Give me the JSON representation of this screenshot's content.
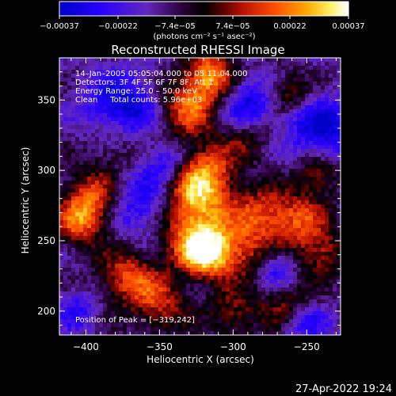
{
  "chart_data": {
    "type": "heatmap",
    "title": "Reconstructed RHESSI Image",
    "xlabel": "Heliocentric X (arcsec)",
    "ylabel": "Heliocentric Y (arcsec)",
    "xlim": [
      -418,
      -227
    ],
    "ylim": [
      183,
      380
    ],
    "xticks": [
      -400,
      -350,
      -300,
      -250
    ],
    "yticks": [
      200,
      250,
      300,
      350
    ],
    "xtick_labels": [
      "−400",
      "−350",
      "−300",
      "−250"
    ],
    "ytick_labels": [
      "200",
      "250",
      "300",
      "350"
    ],
    "colorbar": {
      "ticks": [
        -0.00037,
        -0.00022,
        -7.4e-05,
        7.4e-05,
        0.00022,
        0.00037
      ],
      "tick_labels": [
        "−0.00037",
        "−0.00022",
        "−7.4e−05",
        "7.4e−05",
        "0.00022",
        "0.00037"
      ],
      "units_label": "(photons cm⁻² s⁻¹ asec⁻²)",
      "range": [
        -0.00037,
        0.00037
      ]
    },
    "annotations": [
      "14–Jan–2005 05:05:04.000 to 05:11:04.000",
      "Detectors: 3F 4F 5F 6F 7F 8F, Att 1",
      "Energy Range: 25.0 – 50.0 keV",
      "Clean     Total counts: 5.96e+03"
    ],
    "peak_label": "Position of Peak = [−319,242]",
    "peak": [
      -319,
      242
    ],
    "blobs": [
      {
        "x": -319,
        "y": 242,
        "v": 0.00037,
        "r": 12
      },
      {
        "x": -330,
        "y": 262,
        "v": 0.00022,
        "r": 18
      },
      {
        "x": -325,
        "y": 285,
        "v": 0.00018,
        "r": 16
      },
      {
        "x": -318,
        "y": 300,
        "v": 0.00016,
        "r": 14
      },
      {
        "x": -330,
        "y": 345,
        "v": 0.00024,
        "r": 15
      },
      {
        "x": -315,
        "y": 368,
        "v": 0.00026,
        "r": 12
      },
      {
        "x": -395,
        "y": 280,
        "v": 0.00022,
        "r": 14
      },
      {
        "x": -405,
        "y": 262,
        "v": 0.00018,
        "r": 12
      },
      {
        "x": -372,
        "y": 225,
        "v": 0.0002,
        "r": 14
      },
      {
        "x": -350,
        "y": 205,
        "v": 0.00016,
        "r": 14
      },
      {
        "x": -282,
        "y": 268,
        "v": 0.00018,
        "r": 14
      },
      {
        "x": -295,
        "y": 240,
        "v": 0.00014,
        "r": 14
      },
      {
        "x": -255,
        "y": 265,
        "v": 0.00018,
        "r": 14
      },
      {
        "x": -243,
        "y": 297,
        "v": 0.00014,
        "r": 10
      },
      {
        "x": -240,
        "y": 240,
        "v": 0.00014,
        "r": 12
      },
      {
        "x": -262,
        "y": 355,
        "v": 0.00014,
        "r": 10
      },
      {
        "x": -290,
        "y": 325,
        "v": 0.00012,
        "r": 12
      },
      {
        "x": -300,
        "y": 198,
        "v": 0.00012,
        "r": 12
      },
      {
        "x": -265,
        "y": 205,
        "v": 0.0001,
        "r": 12
      },
      {
        "x": -380,
        "y": 318,
        "v": 8e-05,
        "r": 14
      },
      {
        "x": -360,
        "y": 275,
        "v": -0.00018,
        "r": 18
      },
      {
        "x": -375,
        "y": 345,
        "v": -0.00022,
        "r": 18
      },
      {
        "x": -290,
        "y": 345,
        "v": -0.0002,
        "r": 14
      },
      {
        "x": -240,
        "y": 330,
        "v": -0.0002,
        "r": 16
      },
      {
        "x": -270,
        "y": 230,
        "v": -0.00012,
        "r": 10
      },
      {
        "x": -250,
        "y": 190,
        "v": -0.00012,
        "r": 10
      },
      {
        "x": -405,
        "y": 200,
        "v": -0.0001,
        "r": 10
      },
      {
        "x": -345,
        "y": 305,
        "v": -0.00012,
        "r": 10
      }
    ]
  },
  "footer": {
    "timestamp": "27-Apr-2022 19:24"
  }
}
